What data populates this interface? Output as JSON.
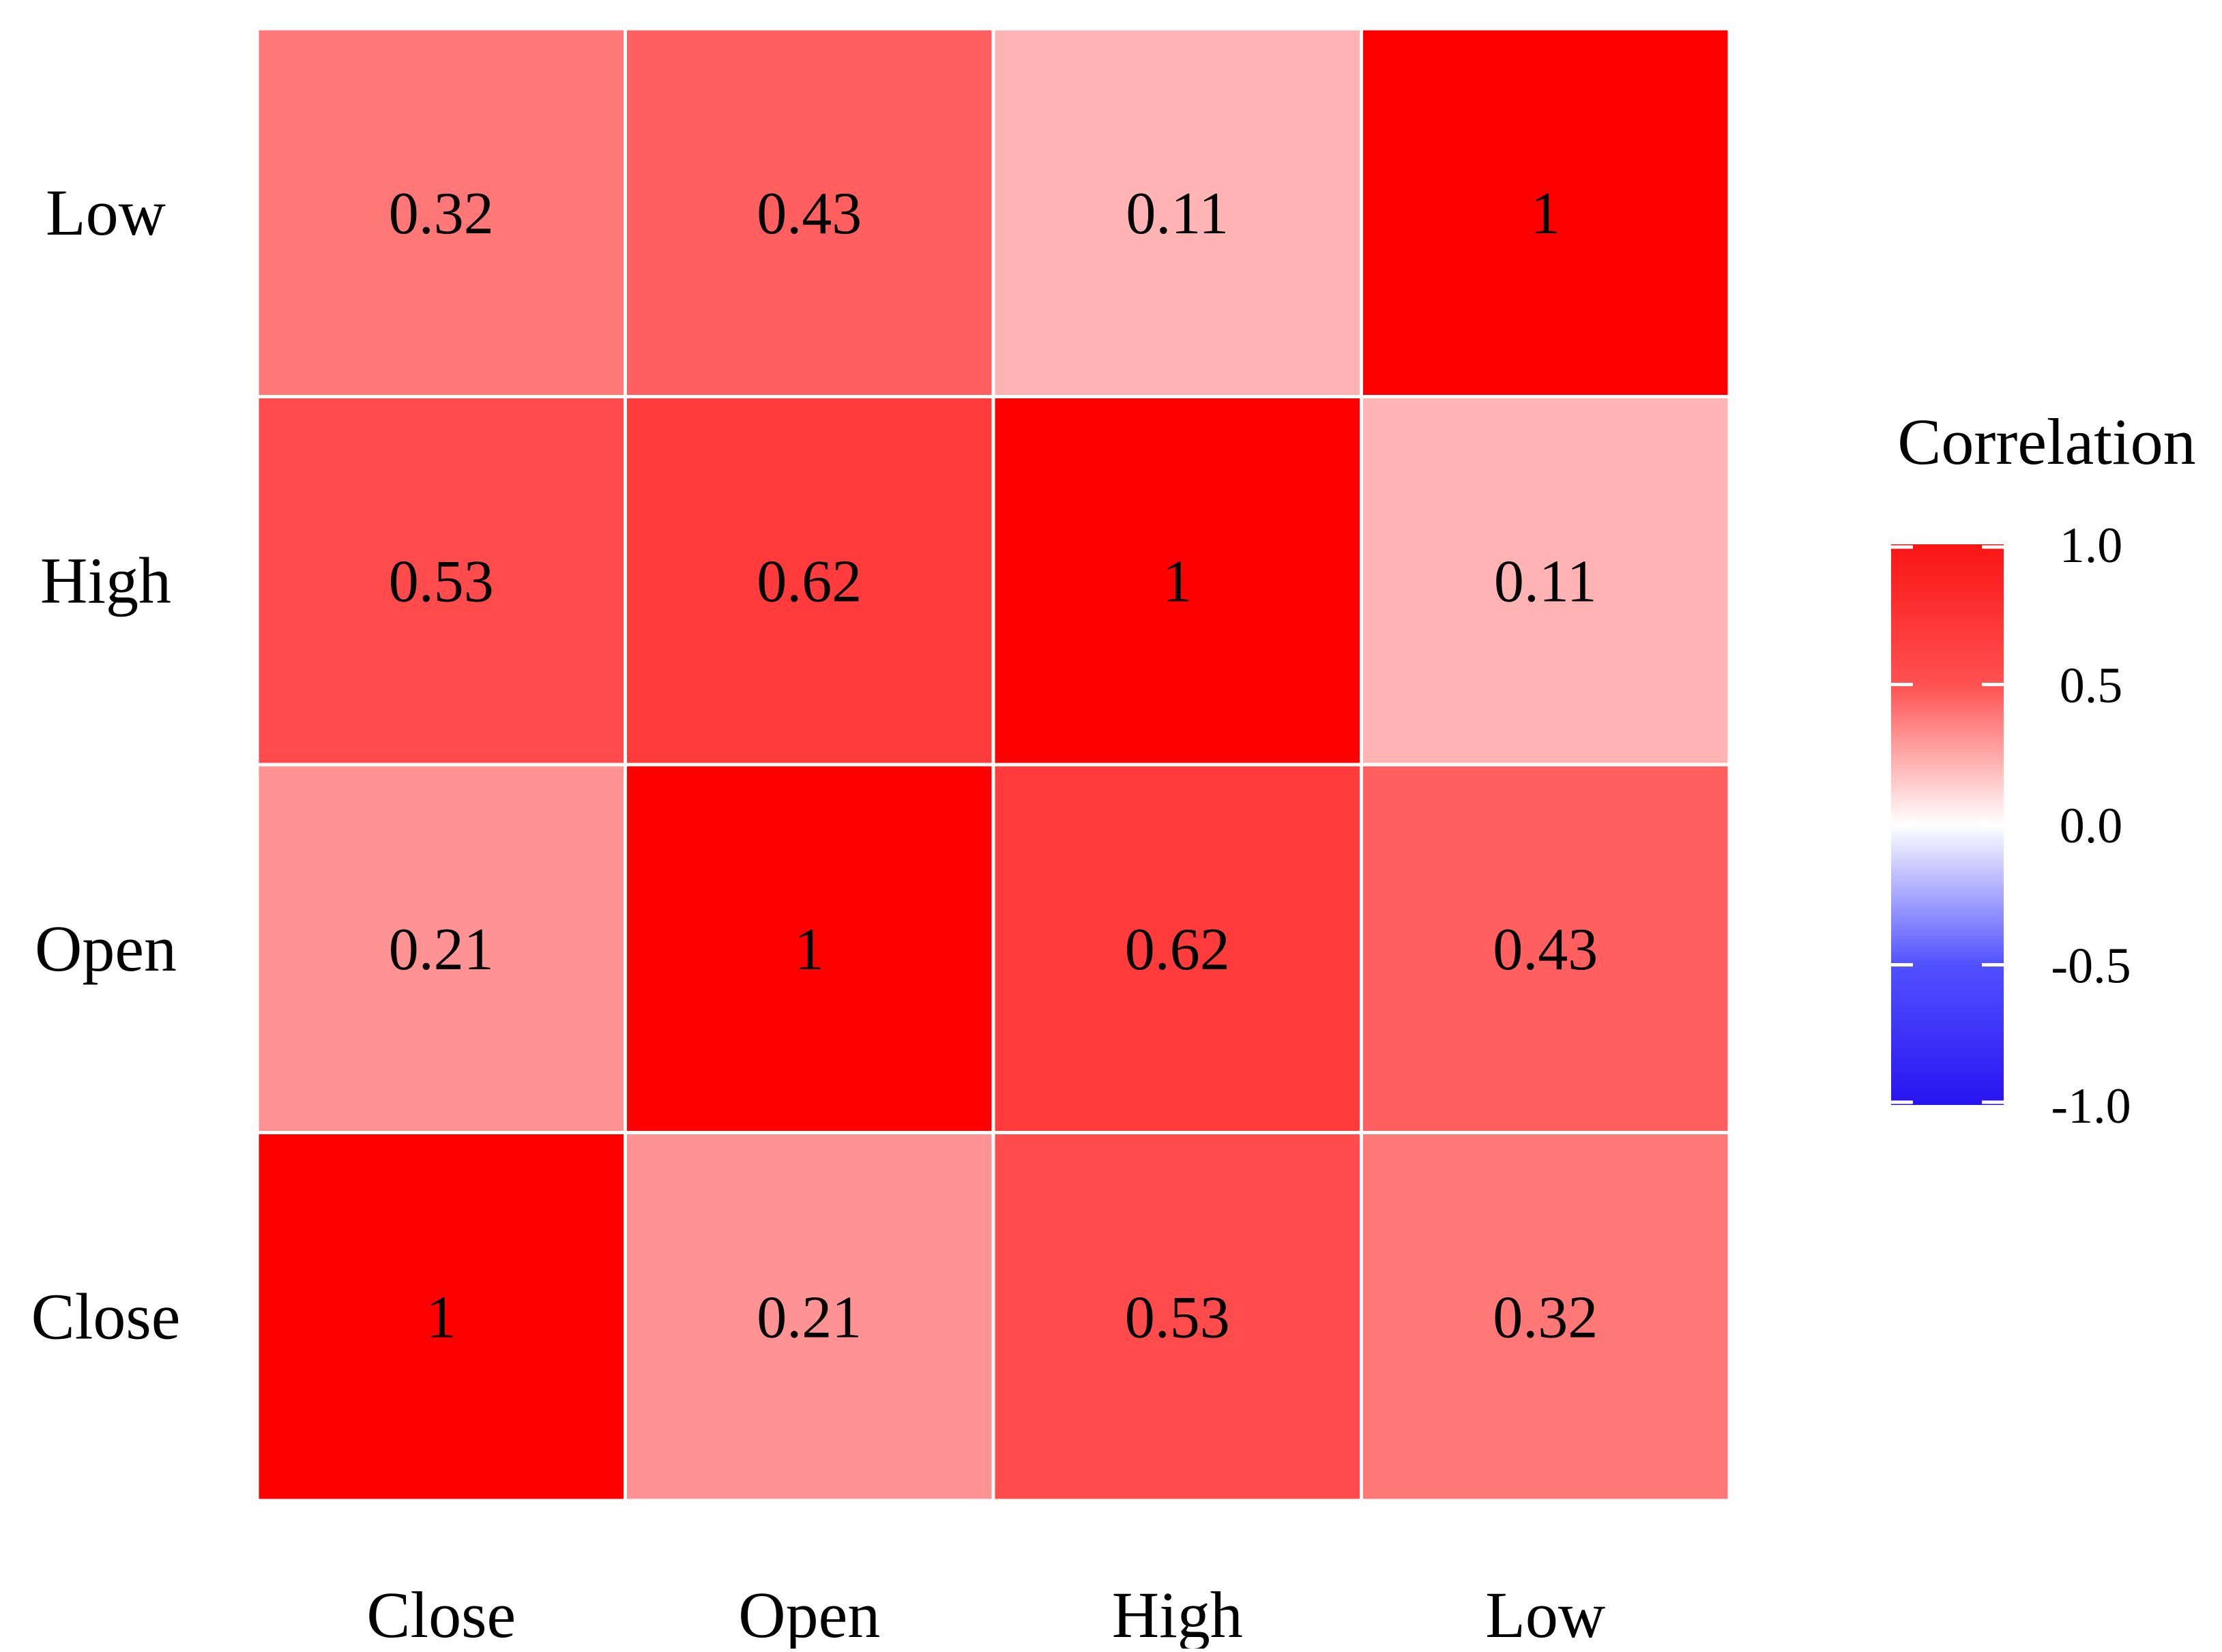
{
  "chart_data": {
    "type": "heatmap",
    "title": "",
    "xlabel": "",
    "ylabel": "",
    "x_categories": [
      "Close",
      "Open",
      "High",
      "Low"
    ],
    "y_categories": [
      "Close",
      "Open",
      "High",
      "Low"
    ],
    "cells": [
      {
        "x": "Close",
        "y": "Close",
        "value": 1,
        "label": "1"
      },
      {
        "x": "Open",
        "y": "Close",
        "value": 0.21,
        "label": "0.21"
      },
      {
        "x": "High",
        "y": "Close",
        "value": 0.53,
        "label": "0.53"
      },
      {
        "x": "Low",
        "y": "Close",
        "value": 0.32,
        "label": "0.32"
      },
      {
        "x": "Close",
        "y": "Open",
        "value": 0.21,
        "label": "0.21"
      },
      {
        "x": "Open",
        "y": "Open",
        "value": 1,
        "label": "1"
      },
      {
        "x": "High",
        "y": "Open",
        "value": 0.62,
        "label": "0.62"
      },
      {
        "x": "Low",
        "y": "Open",
        "value": 0.43,
        "label": "0.43"
      },
      {
        "x": "Close",
        "y": "High",
        "value": 0.53,
        "label": "0.53"
      },
      {
        "x": "Open",
        "y": "High",
        "value": 0.62,
        "label": "0.62"
      },
      {
        "x": "High",
        "y": "High",
        "value": 1,
        "label": "1"
      },
      {
        "x": "Low",
        "y": "High",
        "value": 0.11,
        "label": "0.11"
      },
      {
        "x": "Close",
        "y": "Low",
        "value": 0.32,
        "label": "0.32"
      },
      {
        "x": "Open",
        "y": "Low",
        "value": 0.43,
        "label": "0.43"
      },
      {
        "x": "High",
        "y": "Low",
        "value": 0.11,
        "label": "0.11"
      },
      {
        "x": "Low",
        "y": "Low",
        "value": 1,
        "label": "1"
      }
    ],
    "legend": {
      "title": "Correlation",
      "position": "right",
      "range": [
        -1,
        1
      ],
      "ticks": [
        {
          "value": 1,
          "label": "1.0"
        },
        {
          "value": 0.5,
          "label": "0.5"
        },
        {
          "value": 0,
          "label": "0.0"
        },
        {
          "value": -0.5,
          "label": "-0.5"
        },
        {
          "value": -1,
          "label": "-1.0"
        }
      ]
    },
    "colors": {
      "high": "#ff0000",
      "mid": "#ffffff",
      "low": "#0000ff",
      "text": "#000000",
      "grid": "#ffffff"
    }
  }
}
